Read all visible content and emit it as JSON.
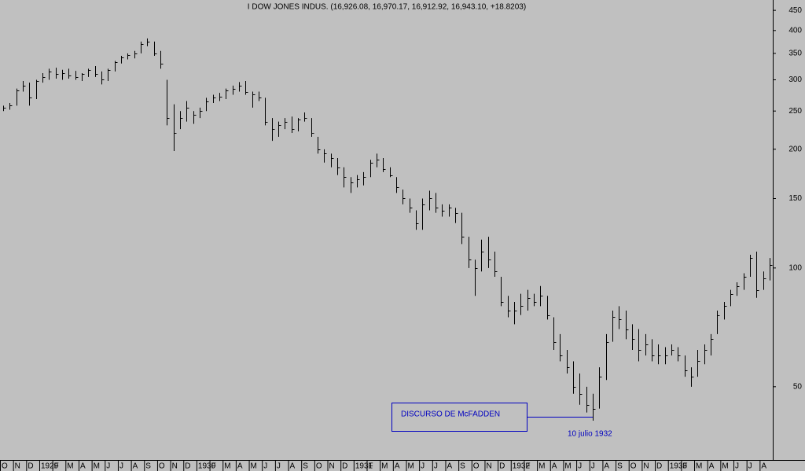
{
  "chart_data": {
    "type": "ohlc",
    "title": "I DOW JONES INDUS. (16,926.08, 16,970.17, 16,912.92, 16,943.10, +18.8203)",
    "annotations": [
      "DISCURSO DE McFADDEN",
      "10 julio 1932"
    ],
    "log_scale": true,
    "color": "#000000",
    "ylim": [
      32.6,
      478
    ],
    "yticks": [
      50,
      100,
      150,
      200,
      250,
      300,
      350,
      400,
      450
    ],
    "categories": [
      "O",
      "N",
      "D",
      "1929",
      "F",
      "M",
      "A",
      "M",
      "J",
      "J",
      "A",
      "S",
      "O",
      "N",
      "D",
      "1930",
      "F",
      "M",
      "A",
      "M",
      "J",
      "J",
      "A",
      "S",
      "O",
      "N",
      "D",
      "1931",
      "F",
      "M",
      "A",
      "M",
      "J",
      "J",
      "A",
      "S",
      "O",
      "N",
      "D",
      "1932",
      "F",
      "M",
      "A",
      "M",
      "J",
      "J",
      "A",
      "S",
      "O",
      "N",
      "D",
      "1933",
      "F",
      "M",
      "A",
      "M",
      "J",
      "J",
      "A"
    ],
    "high": [
      258,
      262,
      285,
      298,
      295,
      300,
      312,
      320,
      322,
      318,
      320,
      316,
      312,
      320,
      325,
      315,
      320,
      335,
      345,
      350,
      355,
      375,
      382,
      375,
      355,
      300,
      260,
      250,
      265,
      250,
      255,
      270,
      275,
      278,
      285,
      290,
      296,
      298,
      280,
      280,
      270,
      240,
      235,
      240,
      242,
      240,
      248,
      240,
      215,
      200,
      195,
      190,
      180,
      170,
      172,
      175,
      188,
      195,
      190,
      180,
      170,
      158,
      150,
      140,
      150,
      157,
      155,
      145,
      145,
      142,
      138,
      120,
      105,
      118,
      120,
      110,
      95,
      85,
      82,
      86,
      88,
      86,
      90,
      85,
      75,
      68,
      62,
      58,
      54,
      50,
      48,
      56,
      68,
      78,
      80,
      78,
      72,
      70,
      68,
      66,
      64,
      63,
      64,
      63,
      60,
      56,
      62,
      64,
      68,
      78,
      82,
      88,
      92,
      97,
      108,
      110,
      98,
      106
    ],
    "low": [
      250,
      252,
      258,
      280,
      258,
      268,
      295,
      300,
      302,
      300,
      302,
      300,
      298,
      305,
      305,
      292,
      298,
      315,
      330,
      338,
      340,
      350,
      365,
      345,
      320,
      230,
      198,
      225,
      235,
      232,
      240,
      250,
      262,
      265,
      268,
      275,
      280,
      275,
      255,
      265,
      230,
      210,
      215,
      225,
      220,
      222,
      235,
      215,
      195,
      185,
      180,
      172,
      160,
      155,
      160,
      162,
      170,
      180,
      175,
      170,
      155,
      145,
      138,
      125,
      125,
      140,
      138,
      135,
      135,
      130,
      115,
      100,
      85,
      98,
      100,
      95,
      80,
      75,
      72,
      76,
      78,
      80,
      80,
      74,
      62,
      58,
      54,
      48,
      45,
      43,
      41,
      44,
      52,
      65,
      70,
      66,
      62,
      58,
      60,
      58,
      57,
      57,
      60,
      58,
      53,
      50,
      53,
      57,
      60,
      68,
      74,
      80,
      85,
      88,
      95,
      84,
      88,
      93
    ],
    "close": [
      255,
      258,
      282,
      290,
      270,
      298,
      305,
      315,
      310,
      312,
      308,
      305,
      310,
      318,
      310,
      300,
      318,
      333,
      342,
      347,
      350,
      370,
      375,
      350,
      330,
      240,
      220,
      240,
      255,
      245,
      250,
      265,
      270,
      272,
      282,
      285,
      290,
      280,
      275,
      270,
      235,
      225,
      230,
      235,
      225,
      238,
      240,
      220,
      200,
      195,
      190,
      180,
      170,
      165,
      168,
      170,
      185,
      188,
      178,
      172,
      160,
      150,
      142,
      130,
      145,
      150,
      142,
      140,
      142,
      138,
      120,
      105,
      100,
      110,
      105,
      98,
      82,
      78,
      78,
      80,
      84,
      82,
      85,
      76,
      65,
      60,
      56,
      50,
      48,
      45,
      44,
      53,
      65,
      75,
      74,
      70,
      66,
      62,
      64,
      60,
      60,
      60,
      62,
      60,
      55,
      53,
      58,
      62,
      66,
      76,
      80,
      86,
      90,
      95,
      106,
      88,
      94,
      102
    ]
  }
}
